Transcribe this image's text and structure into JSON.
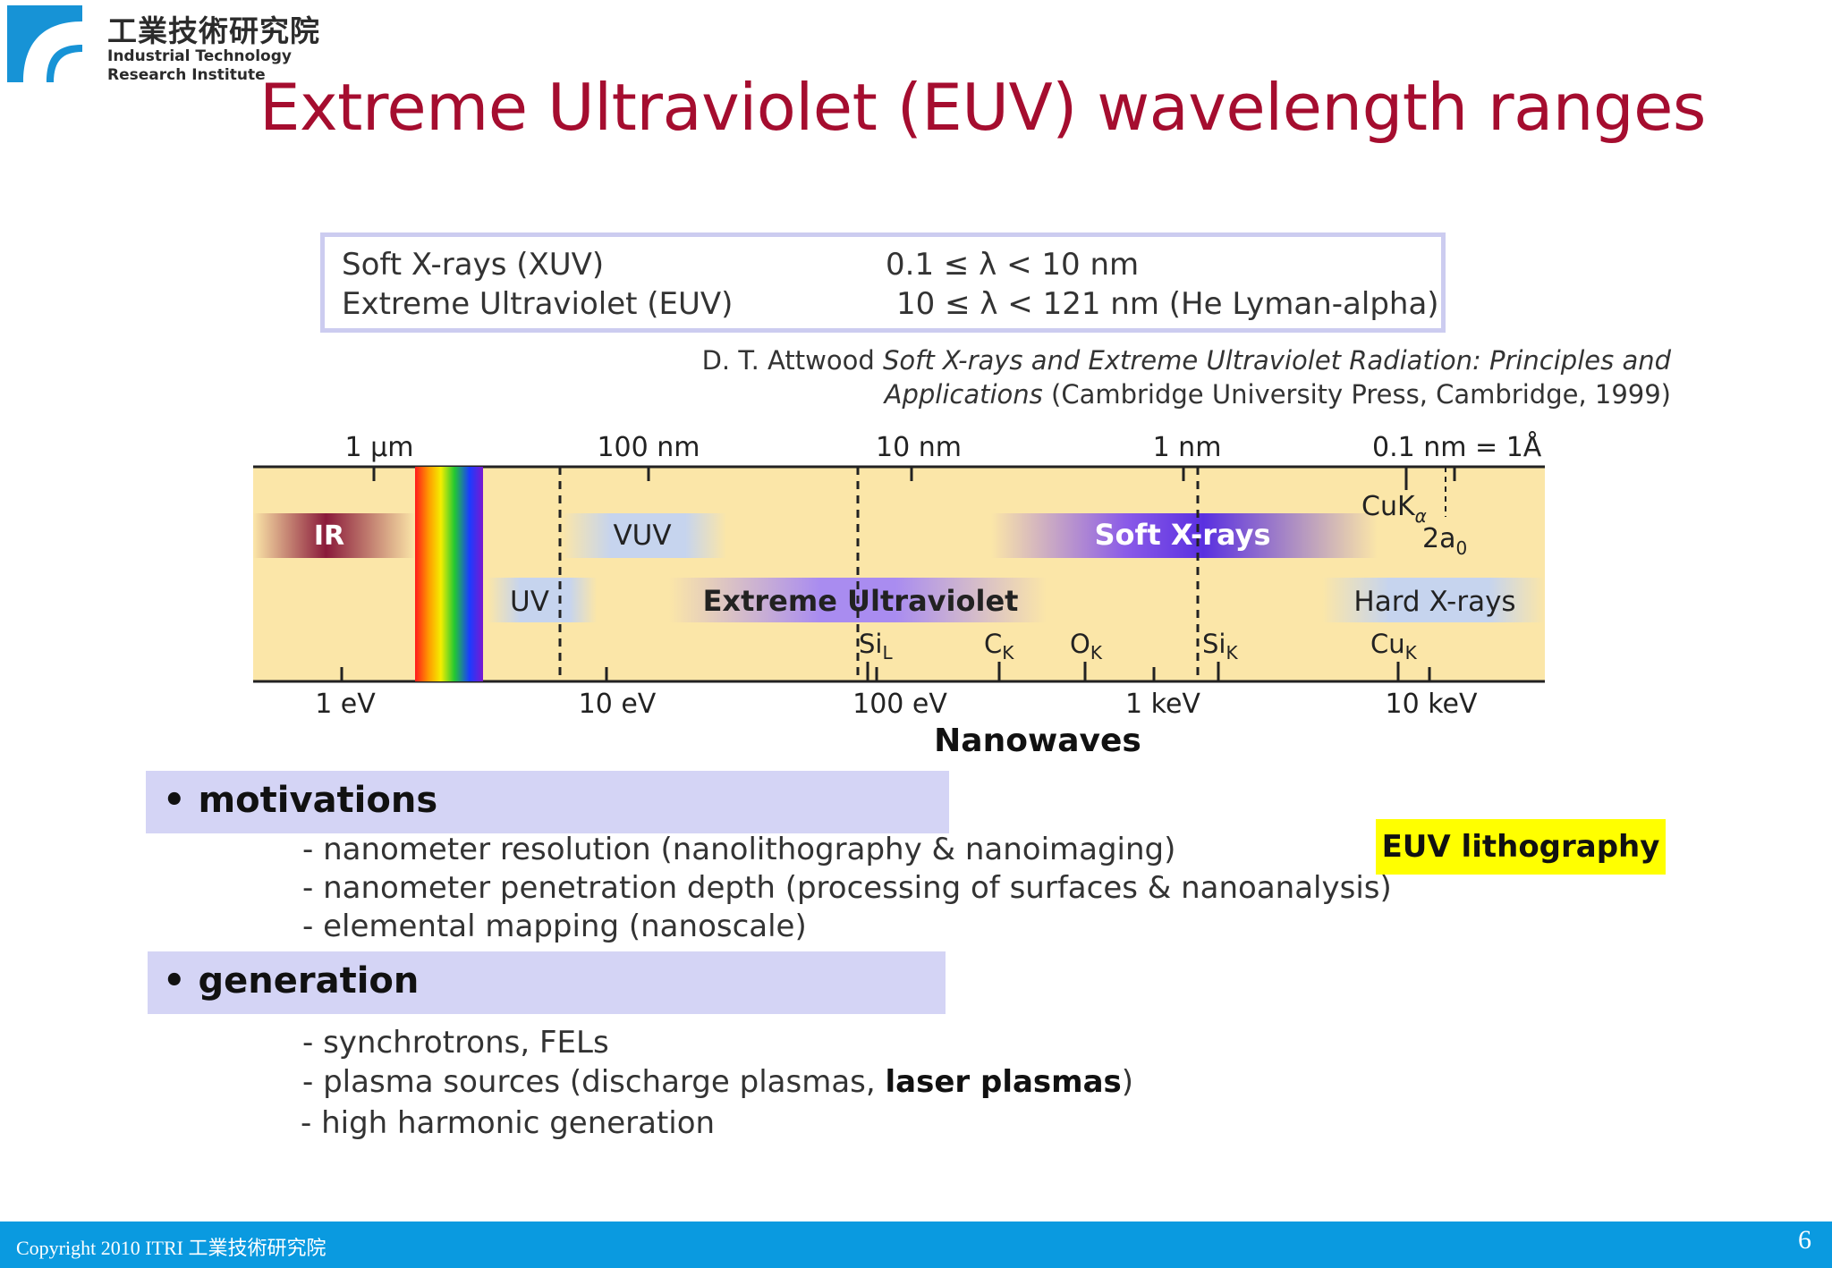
{
  "header": {
    "logo_cn": "工業技術研究院",
    "logo_en_line1": "Industrial Technology",
    "logo_en_line2": "Research Institute",
    "title": "Extreme Ultraviolet (EUV) wavelength ranges"
  },
  "definitions": [
    {
      "name": "Soft X-rays (XUV)",
      "range": "0.1 ≤ λ < 10 nm"
    },
    {
      "name": "Extreme Ultraviolet (EUV)",
      "range": "10 ≤ λ < 121 nm (He Lyman-alpha)"
    }
  ],
  "reference": {
    "author": "D. T. Attwood",
    "title_line1": "Soft X-rays and Extreme Ultraviolet Radiation: Principles and",
    "title_line2": "Applications",
    "publisher": "(Cambridge University Press, Cambridge, 1999)"
  },
  "spectrum": {
    "wavelength_labels": [
      "1 μm",
      "100 nm",
      "10 nm",
      "1 nm",
      "0.1 nm = 1Å"
    ],
    "energy_labels": [
      "1 eV",
      "10 eV",
      "100 eV",
      "1 keV",
      "10 keV"
    ],
    "bands": {
      "ir": "IR",
      "vuv": "VUV",
      "uv": "UV",
      "soft_xrays": "Soft X-rays",
      "euv": "Extreme Ultraviolet",
      "hard_xrays": "Hard X-rays"
    },
    "edges": {
      "si_l": "Si",
      "si_l_sub": "L",
      "c_k": "C",
      "c_k_sub": "K",
      "o_k": "O",
      "o_k_sub": "K",
      "si_k": "Si",
      "si_k_sub": "K",
      "cu_k": "Cu",
      "cu_k_sub": "K"
    },
    "cuka": "CuK",
    "cuka_sub": "α",
    "two_a0": "2a",
    "two_a0_sub": "0",
    "caption": "Nanowaves",
    "colors": {
      "background": "#fbe6a8",
      "ir": "#8a1a3a",
      "soft_xrays": "#6a3fe8",
      "euv": "#9a7ae8",
      "pale_band": "#c6d4ee"
    }
  },
  "motivations": {
    "heading": "motivations",
    "items": [
      "- nanometer resolution (nanolithography & nanoimaging)",
      "- nanometer penetration depth (processing of surfaces & nanoanalysis)",
      "- elemental mapping (nanoscale)"
    ]
  },
  "generation": {
    "heading": "generation",
    "item1": "- synchrotrons, FELs",
    "item2_prefix": "- plasma sources (discharge plasmas, ",
    "item2_bold": "laser plasmas",
    "item2_suffix": ")",
    "item3": "- high harmonic generation"
  },
  "highlight": "EUV lithography",
  "footer": {
    "copyright": "Copyright 2010 ITRI 工業技術研究院",
    "page": "6"
  }
}
